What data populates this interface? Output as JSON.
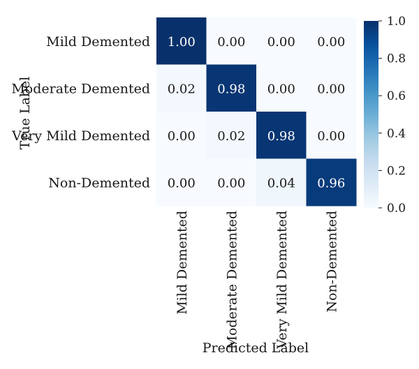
{
  "chart_data": {
    "type": "heatmap",
    "title": "",
    "xlabel": "Predicted Label",
    "ylabel": "True Label",
    "rows": [
      "Mild Demented",
      "Moderate Demented",
      "Very Mild Demented",
      "Non-Demented"
    ],
    "cols": [
      "Mild Demented",
      "Moderate Demented",
      "Very Mild Demented",
      "Non-Demented"
    ],
    "values": [
      [
        1.0,
        0.0,
        0.0,
        0.0
      ],
      [
        0.02,
        0.98,
        0.0,
        0.0
      ],
      [
        0.0,
        0.02,
        0.98,
        0.0
      ],
      [
        0.0,
        0.0,
        0.04,
        0.96
      ]
    ],
    "cell_labels": [
      [
        "1.00",
        "0.00",
        "0.00",
        "0.00"
      ],
      [
        "0.02",
        "0.98",
        "0.00",
        "0.00"
      ],
      [
        "0.00",
        "0.02",
        "0.98",
        "0.00"
      ],
      [
        "0.00",
        "0.00",
        "0.04",
        "0.96"
      ]
    ],
    "colorbar": {
      "range": [
        0.0,
        1.0
      ],
      "ticks": [
        "0.0",
        "0.2",
        "0.4",
        "0.6",
        "0.8",
        "1.0"
      ],
      "colormap": "Blues",
      "low_color": "#f7fbff",
      "high_color": "#08306b"
    },
    "grid": false,
    "legend": "colorbar-right"
  }
}
